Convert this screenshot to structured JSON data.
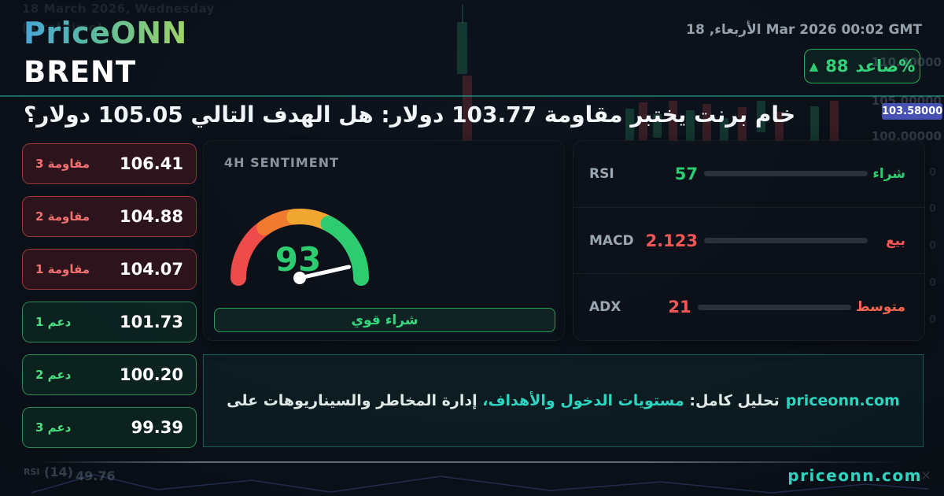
{
  "header": {
    "logo": "PriceONN",
    "symbol": "BRENT",
    "date": {
      "day": "18",
      "weekday": "الأربعاء,",
      "rest": "Mar 2026 00:02 GMT"
    },
    "badge": {
      "arrow": "▲",
      "value": "88",
      "label_with_percent": "صاعد%"
    },
    "headline": "خام برنت يختبر مقاومة 103.77 دولار: هل الهدف التالي 105.05 دولار؟"
  },
  "levels": [
    {
      "label": "مقاومة 3",
      "value": "106.41",
      "type": "resistance"
    },
    {
      "label": "مقاومة 2",
      "value": "104.88",
      "type": "resistance"
    },
    {
      "label": "مقاومة 1",
      "value": "104.07",
      "type": "resistance"
    },
    {
      "label": "دعم 1",
      "value": "101.73",
      "type": "support"
    },
    {
      "label": "دعم 2",
      "value": "100.20",
      "type": "support"
    },
    {
      "label": "دعم 3",
      "value": "99.39",
      "type": "support"
    }
  ],
  "sentiment": {
    "title": "4H SENTIMENT",
    "value": "93",
    "status": "شراء قوي"
  },
  "indicators": [
    {
      "name": "RSI",
      "value": "57",
      "pct": 57,
      "status": "شراء",
      "direction": "buy"
    },
    {
      "name": "MACD",
      "value": "2.123",
      "pct": 100,
      "status": "بيع",
      "direction": "sell"
    },
    {
      "name": "ADX",
      "value": "21",
      "pct": 20,
      "status": "متوسط",
      "direction": "neutral"
    }
  ],
  "analysis": {
    "prefix": "تحليل كامل: ",
    "highlight": "مستويات الدخول والأهداف،",
    "middle": " إدارة المخاطر والسيناريوهات على",
    "site": "priceonn.com"
  },
  "footer": {
    "site": "priceonn.com"
  },
  "background": {
    "faint_line1": "18 March 2026, Wednesday",
    "faint_line2": "(local time)",
    "price_axis": {
      "upper": "110.00000",
      "above": "105.00000",
      "current": "103.58000",
      "below": "100.00000"
    },
    "axis_fragment": "0",
    "rsi_label": "RSI",
    "rsi_period": "(14)",
    "rsi_value": "49.76",
    "close_glyph": "×"
  },
  "colors": {
    "accent_green": "#2ecc71",
    "accent_red": "#f25555",
    "accent_teal": "#2dd4bf",
    "gauge_red": "#ee4b4b",
    "gauge_orange": "#f07a2f",
    "gauge_amber": "#f0a732",
    "price_tag_blue": "#5059c8",
    "resistance_label": "#f17070",
    "support_label": "#4ade80"
  }
}
